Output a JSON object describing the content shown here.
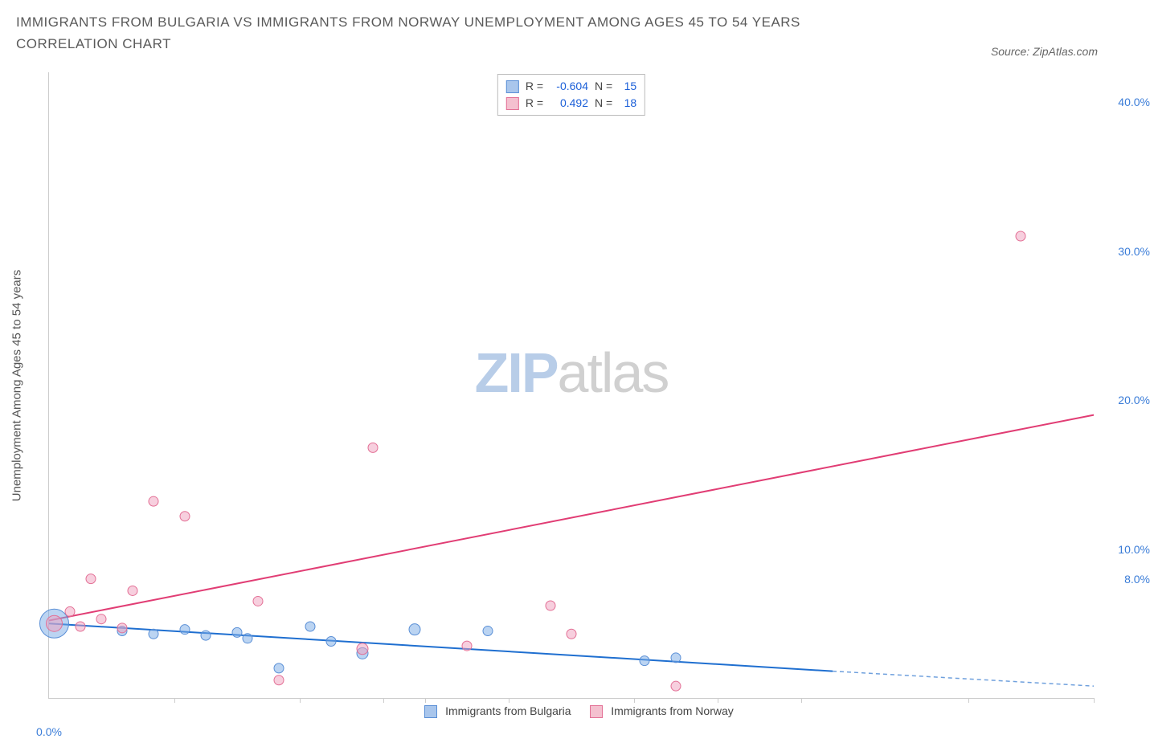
{
  "header": {
    "title": "IMMIGRANTS FROM BULGARIA VS IMMIGRANTS FROM NORWAY UNEMPLOYMENT AMONG AGES 45 TO 54 YEARS CORRELATION CHART",
    "source_label": "Source:",
    "source_value": "ZipAtlas.com"
  },
  "watermark": {
    "part1": "ZIP",
    "part2": "atlas"
  },
  "chart": {
    "type": "scatter-with-regression",
    "background_color": "#ffffff",
    "y_axis": {
      "label": "Unemployment Among Ages 45 to 54 years",
      "min": 0,
      "max": 42,
      "ticks": [
        {
          "v": 8,
          "label": "8.0%"
        },
        {
          "v": 10,
          "label": "10.0%"
        },
        {
          "v": 20,
          "label": "20.0%"
        },
        {
          "v": 30,
          "label": "30.0%"
        },
        {
          "v": 40,
          "label": "40.0%"
        }
      ],
      "tick_color": "#3b7dd8",
      "label_fontsize": 15
    },
    "x_axis": {
      "min": 0,
      "max": 100,
      "zero_label": "0.0%",
      "tick_positions": [
        12,
        24,
        32,
        36,
        44,
        56,
        64,
        72,
        88,
        100
      ],
      "tick_color": "#3b7dd8"
    },
    "series": [
      {
        "key": "bulgaria",
        "name": "Immigrants from Bulgaria",
        "swatch_fill": "#a9c6ec",
        "swatch_border": "#5a8fd6",
        "marker_fill": "rgba(120,170,230,0.5)",
        "marker_stroke": "#5a8fd6",
        "line_color": "#1f6fd0",
        "line_dash_color": "#6fa0dd",
        "r_label": "R =",
        "r_value": "-0.604",
        "n_label": "N =",
        "n_value": "15",
        "points": [
          {
            "x": 0.5,
            "y": 5.0,
            "r": 18
          },
          {
            "x": 7,
            "y": 4.5,
            "r": 6
          },
          {
            "x": 10,
            "y": 4.3,
            "r": 6
          },
          {
            "x": 13,
            "y": 4.6,
            "r": 6
          },
          {
            "x": 15,
            "y": 4.2,
            "r": 6
          },
          {
            "x": 18,
            "y": 4.4,
            "r": 6
          },
          {
            "x": 19,
            "y": 4.0,
            "r": 6
          },
          {
            "x": 22,
            "y": 2.0,
            "r": 6
          },
          {
            "x": 25,
            "y": 4.8,
            "r": 6
          },
          {
            "x": 27,
            "y": 3.8,
            "r": 6
          },
          {
            "x": 30,
            "y": 3.0,
            "r": 7
          },
          {
            "x": 35,
            "y": 4.6,
            "r": 7
          },
          {
            "x": 42,
            "y": 4.5,
            "r": 6
          },
          {
            "x": 57,
            "y": 2.5,
            "r": 6
          },
          {
            "x": 60,
            "y": 2.7,
            "r": 6
          }
        ],
        "regression": {
          "x1": 0,
          "y1": 5.0,
          "x2": 75,
          "y2": 1.8,
          "dash_to_x": 100,
          "dash_to_y": 0.8
        }
      },
      {
        "key": "norway",
        "name": "Immigrants from Norway",
        "swatch_fill": "#f4c0cf",
        "swatch_border": "#e36f95",
        "marker_fill": "rgba(240,160,190,0.5)",
        "marker_stroke": "#e36f95",
        "line_color": "#e13d74",
        "r_label": "R =",
        "r_value": "0.492",
        "n_label": "N =",
        "n_value": "18",
        "points": [
          {
            "x": 0.5,
            "y": 5.0,
            "r": 10
          },
          {
            "x": 2,
            "y": 5.8,
            "r": 6
          },
          {
            "x": 3,
            "y": 4.8,
            "r": 6
          },
          {
            "x": 4,
            "y": 8.0,
            "r": 6
          },
          {
            "x": 5,
            "y": 5.3,
            "r": 6
          },
          {
            "x": 7,
            "y": 4.7,
            "r": 6
          },
          {
            "x": 8,
            "y": 7.2,
            "r": 6
          },
          {
            "x": 10,
            "y": 13.2,
            "r": 6
          },
          {
            "x": 13,
            "y": 12.2,
            "r": 6
          },
          {
            "x": 20,
            "y": 6.5,
            "r": 6
          },
          {
            "x": 22,
            "y": 1.2,
            "r": 6
          },
          {
            "x": 30,
            "y": 3.3,
            "r": 7
          },
          {
            "x": 31,
            "y": 16.8,
            "r": 6
          },
          {
            "x": 40,
            "y": 3.5,
            "r": 6
          },
          {
            "x": 48,
            "y": 6.2,
            "r": 6
          },
          {
            "x": 50,
            "y": 4.3,
            "r": 6
          },
          {
            "x": 60,
            "y": 0.8,
            "r": 6
          },
          {
            "x": 93,
            "y": 31.0,
            "r": 6
          }
        ],
        "regression": {
          "x1": 0,
          "y1": 5.2,
          "x2": 100,
          "y2": 19.0
        }
      }
    ]
  },
  "legend_bottom": {
    "items": [
      {
        "series": "bulgaria"
      },
      {
        "series": "norway"
      }
    ]
  }
}
